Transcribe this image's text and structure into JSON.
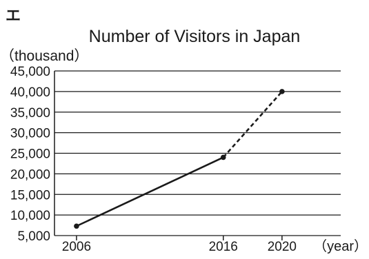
{
  "label_mark": "エ",
  "chart_data": {
    "type": "line",
    "title": "Number of Visitors in Japan",
    "ylabel": "（thousand）",
    "xlabel": "（year）",
    "ylim": [
      5000,
      45000
    ],
    "yticks": [
      5000,
      10000,
      15000,
      20000,
      25000,
      30000,
      35000,
      40000,
      45000
    ],
    "ytick_labels": [
      "5,000",
      "10,000",
      "15,000",
      "20,000",
      "25,000",
      "30,000",
      "35,000",
      "40,000",
      "45,000"
    ],
    "xlim": [
      2004.5,
      2024
    ],
    "xticks": [
      2006,
      2016,
      2020
    ],
    "xtick_labels": [
      "2006",
      "2016",
      "2020"
    ],
    "grid": true,
    "series": [
      {
        "style": "solid",
        "color": "#1a1a1a",
        "points": [
          {
            "x": 2006,
            "y": 7300
          },
          {
            "x": 2016,
            "y": 24000
          }
        ]
      },
      {
        "style": "dashed",
        "color": "#1a1a1a",
        "points": [
          {
            "x": 2016,
            "y": 24000
          },
          {
            "x": 2020,
            "y": 40000
          }
        ]
      }
    ]
  }
}
